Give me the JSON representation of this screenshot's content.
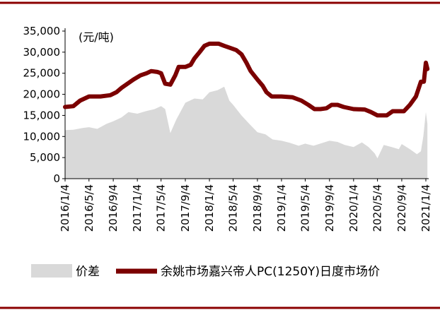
{
  "chart_data": {
    "type": "line",
    "title": "",
    "unit_label": "(元/吨)",
    "ylim": [
      0,
      35000
    ],
    "yticks": [
      "0",
      "5,000",
      "10,000",
      "15,000",
      "20,000",
      "25,000",
      "30,000",
      "35,000"
    ],
    "xticks": [
      "2016/1/4",
      "2016/5/4",
      "2016/9/4",
      "2017/1/4",
      "2017/5/4",
      "2017/9/4",
      "2018/1/4",
      "2018/5/4",
      "2018/9/4",
      "2019/1/4",
      "2019/5/4",
      "2019/9/4",
      "2020/1/4",
      "2020/5/4",
      "2020/9/4",
      "2021/1/4"
    ],
    "legend_position": "bottom",
    "colors": {
      "spread": "#d9d9d9",
      "price": "#7b0000",
      "frame": "#8b0000",
      "axis": "#000000"
    },
    "series": [
      {
        "name": "价差",
        "type": "area",
        "x": [
          "2016/1/4",
          "2016/2/15",
          "2016/4/1",
          "2016/5/4",
          "2016/6/15",
          "2016/8/1",
          "2016/9/4",
          "2016/10/15",
          "2016/11/20",
          "2017/1/4",
          "2017/2/15",
          "2017/4/1",
          "2017/5/4",
          "2017/5/25",
          "2017/6/20",
          "2017/7/20",
          "2017/9/4",
          "2017/10/20",
          "2017/12/1",
          "2018/1/4",
          "2018/2/15",
          "2018/3/20",
          "2018/4/15",
          "2018/5/4",
          "2018/6/15",
          "2018/7/25",
          "2018/9/4",
          "2018/10/15",
          "2018/11/20",
          "2019/1/4",
          "2019/2/15",
          "2019/4/1",
          "2019/5/4",
          "2019/6/15",
          "2019/8/1",
          "2019/9/4",
          "2019/10/15",
          "2019/11/20",
          "2020/1/4",
          "2020/2/15",
          "2020/3/20",
          "2020/4/20",
          "2020/5/4",
          "2020/6/5",
          "2020/7/15",
          "2020/8/20",
          "2020/9/4",
          "2020/10/15",
          "2020/11/20",
          "2020/12/10",
          "2020/12/22",
          "2021/1/4",
          "2021/1/12"
        ],
        "values": [
          11500,
          11600,
          12000,
          12200,
          11800,
          13000,
          13600,
          14500,
          15800,
          15400,
          16000,
          16500,
          17200,
          16500,
          10800,
          14000,
          18000,
          19000,
          18800,
          20500,
          21000,
          21800,
          18500,
          17500,
          15000,
          13000,
          11000,
          10500,
          9300,
          9000,
          8500,
          7800,
          8300,
          7800,
          8500,
          9000,
          8700,
          8000,
          7500,
          8600,
          7500,
          6000,
          4800,
          8000,
          7500,
          7000,
          8200,
          7000,
          5800,
          6500,
          10000,
          15800,
          13000
        ]
      },
      {
        "name": "余姚市场嘉兴帝人PC(1250Y)日度市场价",
        "type": "line",
        "x": [
          "2016/1/4",
          "2016/2/15",
          "2016/3/20",
          "2016/5/4",
          "2016/7/1",
          "2016/8/20",
          "2016/9/20",
          "2016/10/15",
          "2016/11/15",
          "2016/12/15",
          "2017/1/20",
          "2017/2/20",
          "2017/3/15",
          "2017/4/15",
          "2017/5/4",
          "2017/5/25",
          "2017/6/20",
          "2017/7/15",
          "2017/8/1",
          "2017/9/4",
          "2017/10/1",
          "2017/10/20",
          "2017/11/15",
          "2017/12/10",
          "2018/1/4",
          "2018/2/20",
          "2018/3/20",
          "2018/4/20",
          "2018/5/20",
          "2018/6/15",
          "2018/7/10",
          "2018/8/1",
          "2018/9/4",
          "2018/10/1",
          "2018/10/20",
          "2018/11/15",
          "2019/1/4",
          "2019/3/1",
          "2019/4/15",
          "2019/5/20",
          "2019/6/20",
          "2019/7/20",
          "2019/8/20",
          "2019/9/15",
          "2019/10/15",
          "2019/11/15",
          "2020/1/4",
          "2020/3/1",
          "2020/4/1",
          "2020/5/4",
          "2020/6/20",
          "2020/7/20",
          "2020/8/15",
          "2020/9/15",
          "2020/10/15",
          "2020/11/15",
          "2020/12/10",
          "2020/12/25",
          "2021/1/4",
          "2021/1/12"
        ],
        "values": [
          17000,
          17200,
          18500,
          19500,
          19500,
          19800,
          20500,
          21500,
          22500,
          23500,
          24500,
          25000,
          25500,
          25300,
          25000,
          22500,
          22300,
          24500,
          26500,
          26500,
          27000,
          28500,
          30000,
          31500,
          32000,
          32000,
          31500,
          31000,
          30500,
          29500,
          27500,
          25500,
          23500,
          22000,
          20500,
          19500,
          19500,
          19300,
          18500,
          17500,
          16500,
          16500,
          16700,
          17500,
          17500,
          17000,
          16500,
          16400,
          15800,
          15000,
          15000,
          16000,
          16000,
          16000,
          17500,
          19500,
          23000,
          23000,
          27500,
          26000
        ]
      }
    ]
  }
}
